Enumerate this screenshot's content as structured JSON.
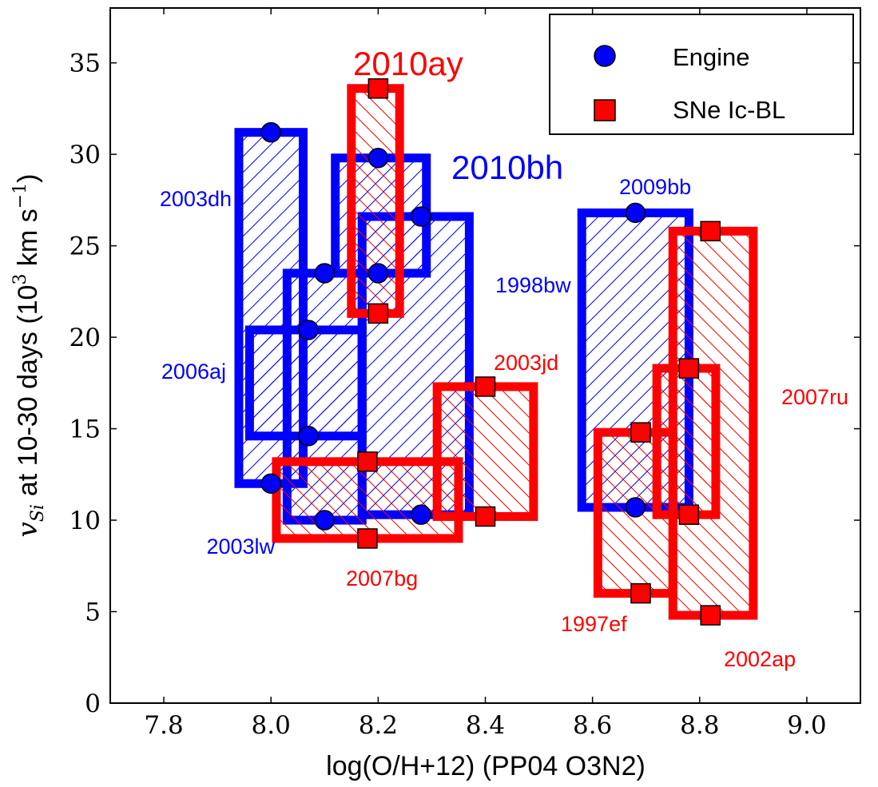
{
  "chart_data": {
    "type": "scatter",
    "xlabel": "log(O/H+12) (PP04 O3N2)",
    "ylabel_prefix": "at 10-30 days (10",
    "ylabel_suffix": " km s",
    "xlim": [
      7.7,
      9.1
    ],
    "ylim": [
      0,
      38
    ],
    "x_ticks": [
      "7.8",
      "8.0",
      "8.2",
      "8.4",
      "8.6",
      "8.8",
      "9.0"
    ],
    "y_ticks": [
      "0",
      "5",
      "10",
      "15",
      "20",
      "25",
      "30",
      "35"
    ],
    "grid": false,
    "legend_position": "top-right",
    "legend": [
      {
        "name": "Engine",
        "marker": "circle",
        "color": "#0000ff"
      },
      {
        "name": "SNe Ic-BL",
        "marker": "square",
        "color": "#ff0000"
      }
    ],
    "colors": {
      "engine": "#0000ff",
      "icbl": "#ff0000"
    },
    "supernovae": [
      {
        "name": "2003dh",
        "group": "engine",
        "x": 8.0,
        "y_low": 12.0,
        "y_high": 31.2,
        "x_range": [
          7.94,
          8.06
        ],
        "y_range": [
          12.0,
          31.2
        ]
      },
      {
        "name": "2006aj",
        "group": "engine",
        "x": 8.07,
        "y_low": 14.6,
        "y_high": 20.4,
        "x_range": [
          7.96,
          8.17
        ],
        "y_range": [
          14.6,
          20.4
        ]
      },
      {
        "name": "2003lw",
        "group": "engine",
        "x": 8.1,
        "y_low": 10.0,
        "y_high": 23.5,
        "x_range": [
          8.03,
          8.17
        ],
        "y_range": [
          10.0,
          23.5
        ]
      },
      {
        "name": "2010bh",
        "group": "engine",
        "x": 8.2,
        "y_low": 23.5,
        "y_high": 29.8,
        "x_range": [
          8.12,
          8.29
        ],
        "y_range": [
          23.5,
          29.8
        ]
      },
      {
        "name": "1998bw",
        "group": "engine",
        "x": 8.28,
        "y_low": 10.3,
        "y_high": 26.6,
        "x_range": [
          8.17,
          8.37
        ],
        "y_range": [
          10.3,
          26.6
        ]
      },
      {
        "name": "2009bb",
        "group": "engine",
        "x": 8.68,
        "y_low": 10.7,
        "y_high": 26.8,
        "x_range": [
          8.58,
          8.78
        ],
        "y_range": [
          10.7,
          26.8
        ]
      },
      {
        "name": "2010ay",
        "group": "icbl",
        "x": 8.2,
        "y_low": 21.3,
        "y_high": 33.6,
        "x_range": [
          8.15,
          8.24
        ],
        "y_range": [
          21.3,
          33.6
        ]
      },
      {
        "name": "2007bg",
        "group": "icbl",
        "x": 8.18,
        "y_low": 9.0,
        "y_high": 13.2,
        "x_range": [
          8.01,
          8.35
        ],
        "y_range": [
          9.0,
          13.2
        ]
      },
      {
        "name": "2003jd",
        "group": "icbl",
        "x": 8.4,
        "y_low": 10.2,
        "y_high": 17.3,
        "x_range": [
          8.31,
          8.49
        ],
        "y_range": [
          10.2,
          17.3
        ]
      },
      {
        "name": "1997ef",
        "group": "icbl",
        "x": 8.69,
        "y_low": 6.0,
        "y_high": 14.8,
        "x_range": [
          8.61,
          8.75
        ],
        "y_range": [
          6.0,
          14.8
        ]
      },
      {
        "name": "2007ru",
        "group": "icbl",
        "x": 8.78,
        "y_low": 10.3,
        "y_high": 18.3,
        "x_range": [
          8.72,
          8.83
        ],
        "y_range": [
          10.3,
          18.3
        ]
      },
      {
        "name": "2002ap",
        "group": "icbl",
        "x": 8.82,
        "y_low": 4.8,
        "y_high": 25.8,
        "x_range": [
          8.75,
          8.9
        ],
        "y_range": [
          4.8,
          25.8
        ]
      }
    ]
  }
}
